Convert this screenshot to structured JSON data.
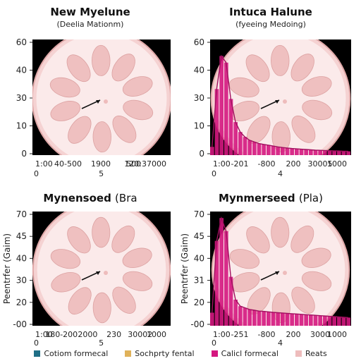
{
  "colors": {
    "teal": "#1f6f86",
    "orange": "#e0b25a",
    "magenta": "#d4177f",
    "pink": "#eebcbc",
    "disc": "#f5d2d2",
    "dark": "#000000"
  },
  "legend": [
    {
      "label": "Cotiom formecal",
      "color": "#1f6f86"
    },
    {
      "label": "Sochprty fental",
      "color": "#e0b25a"
    },
    {
      "label": "Calicl formecal",
      "color": "#d4177f"
    },
    {
      "label": "Reats",
      "color": "#eebcbc"
    }
  ],
  "chart_data": [
    {
      "type": "area",
      "title": "New Myelune",
      "subtitle": "(Deelia Mationm)",
      "ylabel": "",
      "y_ticks": [
        "60",
        "40",
        "30",
        "10",
        "0"
      ],
      "x_ticks": [
        "1:00",
        "40-500",
        "1900",
        "500",
        "120:37000"
      ],
      "x_ticks_row2": [
        "0",
        "5"
      ],
      "series": []
    },
    {
      "type": "bar",
      "title": "Intuca Halune",
      "subtitle": "(fyeeing Medoing)",
      "ylabel": "",
      "y_ticks": [
        "60",
        "40",
        "30",
        "10",
        "0"
      ],
      "x_ticks": [
        "1:00",
        "-201",
        "-800",
        "200",
        "30005",
        "1000"
      ],
      "x_ticks_row2": [
        "0",
        "4"
      ],
      "series": [
        {
          "values": [
            5,
            40,
            60,
            56,
            34,
            20,
            14,
            11,
            9,
            8,
            7,
            6.5,
            6,
            5.5,
            5,
            4.6,
            4.3,
            4,
            3.8,
            3.6,
            3.4,
            3.2,
            3,
            2.9,
            2.8,
            2.7,
            2.6,
            2.5,
            2.4,
            2.3
          ]
        }
      ]
    },
    {
      "type": "area",
      "title": "Mynensoed",
      "title_suffix": "(Bra",
      "subtitle": "",
      "ylabel": "Peentrfer (Gaim)",
      "y_ticks": [
        "70",
        "45",
        "40",
        "30",
        "20",
        "-00"
      ],
      "x_ticks": [
        "1:00",
        "180-200",
        "2000",
        "230",
        "30002",
        "1000"
      ],
      "x_ticks_row2": [
        "0",
        "5"
      ],
      "series": []
    },
    {
      "type": "bar",
      "title": "Mynmerseed",
      "title_suffix": "(Pla)",
      "subtitle": "",
      "ylabel": "Peentrfer (Gaim)",
      "y_ticks": [
        "70",
        "45",
        "40",
        "31",
        "20",
        "-00"
      ],
      "x_ticks": [
        "1:00",
        "-251",
        "-800",
        "200",
        "3000",
        "1000"
      ],
      "x_ticks_row2": [
        "0",
        "4"
      ],
      "series": [
        {
          "values": [
            8,
            52,
            66,
            58,
            30,
            16,
            12,
            11,
            10,
            9.5,
            9,
            8.8,
            8.5,
            8.2,
            8,
            7.8,
            7.6,
            7.4,
            7.2,
            7,
            6.8,
            6.6,
            6.4,
            6.2,
            6,
            5.8,
            5.6,
            5.4,
            5.2,
            5
          ]
        }
      ]
    }
  ]
}
